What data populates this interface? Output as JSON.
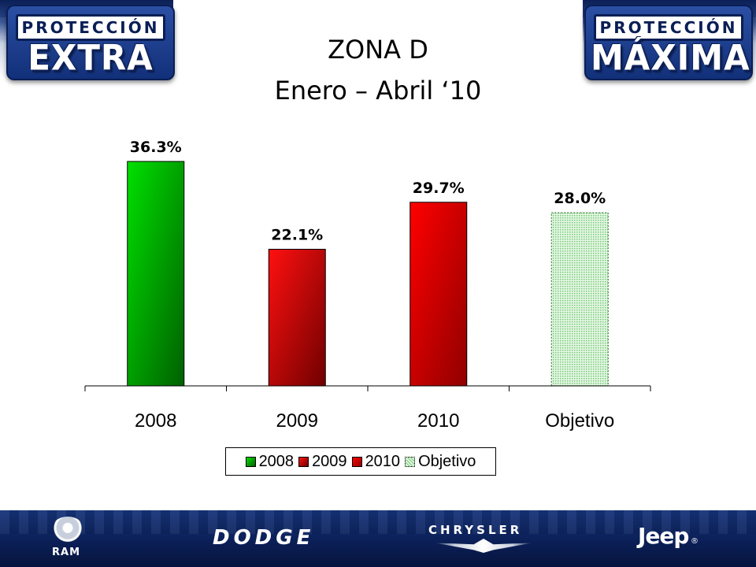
{
  "header": {
    "title_line1": "ZONA D",
    "title_line2": "Enero – Abril ‘10",
    "badge_left": {
      "top": "PROTECCIÓN",
      "big": "EXTRA"
    },
    "badge_right": {
      "top": "PROTECCIÓN",
      "big": "MÁXIMA"
    }
  },
  "footer": {
    "brands": [
      "RAM",
      "DODGE",
      "CHRYSLER",
      "Jeep"
    ],
    "jeep_registered": "®"
  },
  "colors": {
    "band_dark": "#0b1f57",
    "green": "#00c000",
    "red": "#e00000",
    "objective_fill": "#c8f0c8"
  },
  "chart_data": {
    "type": "bar",
    "categories": [
      "2008",
      "2009",
      "2010",
      "Objetivo"
    ],
    "values": [
      36.3,
      22.1,
      29.7,
      28.0
    ],
    "value_labels": [
      "36.3%",
      "22.1%",
      "29.7%",
      "28.0%"
    ],
    "series": [
      {
        "name": "2008",
        "color": "#00b000",
        "pattern": "gradient-green"
      },
      {
        "name": "2009",
        "color": "#d40000",
        "pattern": "gradient-red"
      },
      {
        "name": "2010",
        "color": "#ff0000",
        "pattern": "gradient-red"
      },
      {
        "name": "Objetivo",
        "color": "#c8f0c8",
        "pattern": "dotted-green"
      }
    ],
    "title": "",
    "xlabel": "",
    "ylabel": "",
    "ylim": [
      0,
      40
    ],
    "grid": false,
    "legend": "bottom"
  }
}
